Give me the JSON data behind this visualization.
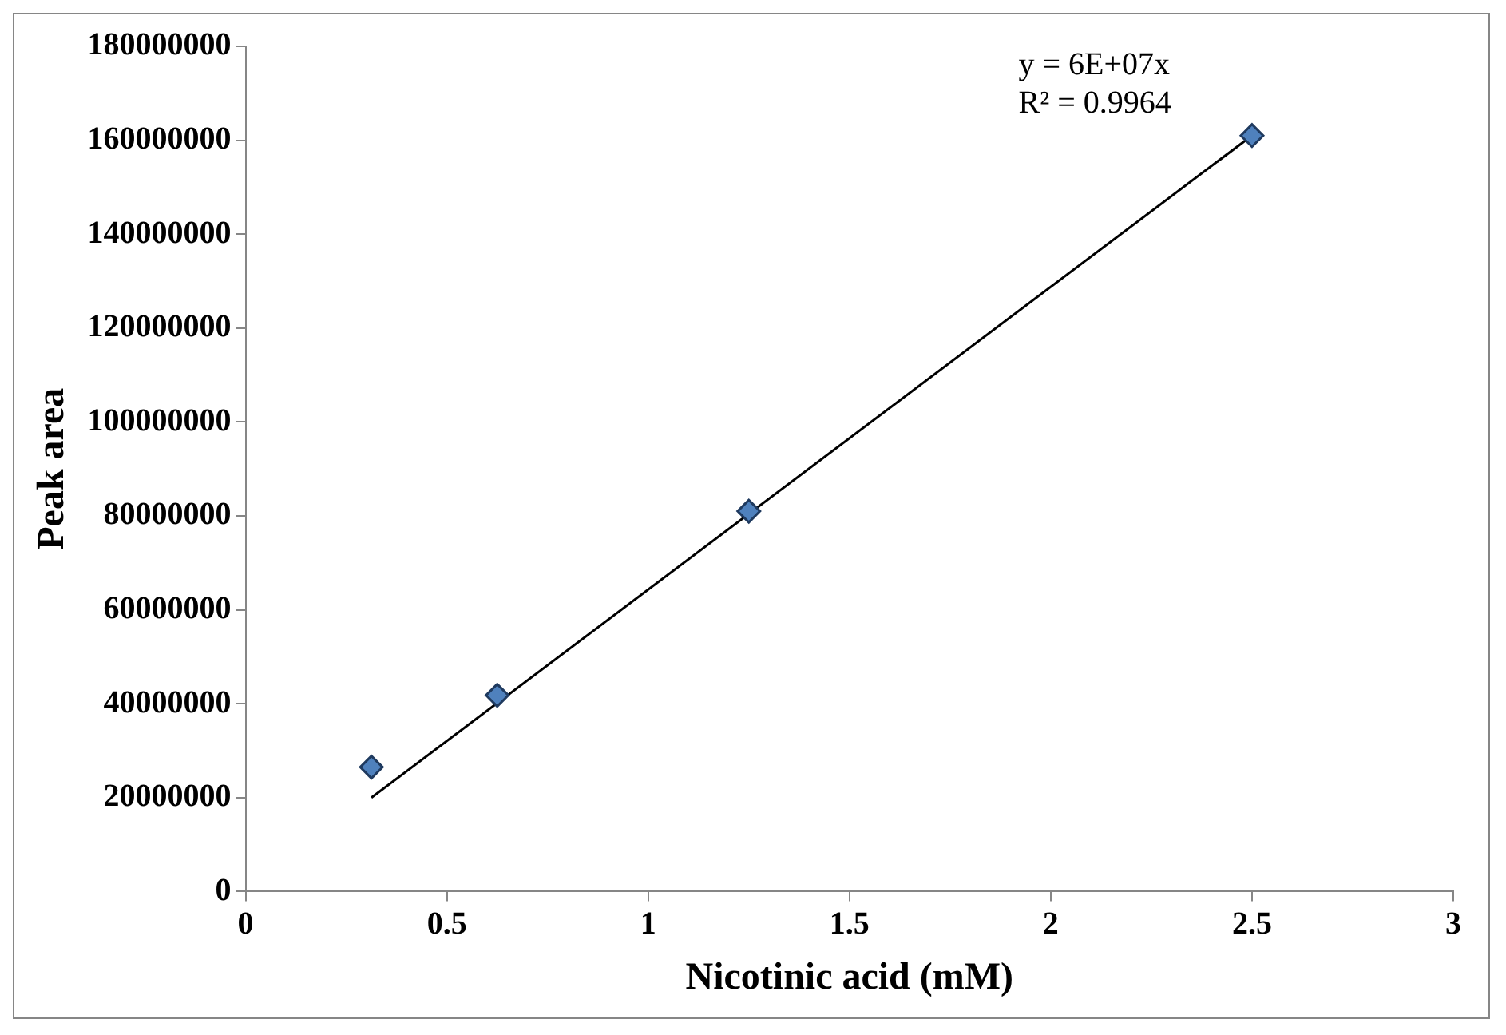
{
  "chart_data": {
    "type": "scatter",
    "xlabel": "Nicotinic acid (mM)",
    "ylabel": "Peak area",
    "series": [
      {
        "type": "scatter",
        "color": "#4f81bd",
        "x": [
          0.3125,
          0.625,
          1.25,
          2.5
        ],
        "values": [
          26500000,
          41800000,
          81000000,
          161000000
        ],
        "marker": "diamond"
      },
      {
        "type": "line",
        "color": "#000000",
        "x": [
          0.3125,
          2.5
        ],
        "values": [
          20000000,
          161000000
        ],
        "marker": "none",
        "line_style": "solid"
      }
    ],
    "annotations": [
      "y = 6E+07x",
      "R² = 0.9964"
    ],
    "xlim": [
      0,
      3
    ],
    "xticks": [
      0,
      0.5,
      1,
      1.5,
      2,
      2.5,
      3
    ],
    "ylim": [
      0,
      180000000
    ],
    "yticks": [
      0,
      20000000,
      40000000,
      60000000,
      80000000,
      100000000,
      120000000,
      140000000,
      160000000,
      180000000
    ],
    "grid": false,
    "legend": false
  }
}
